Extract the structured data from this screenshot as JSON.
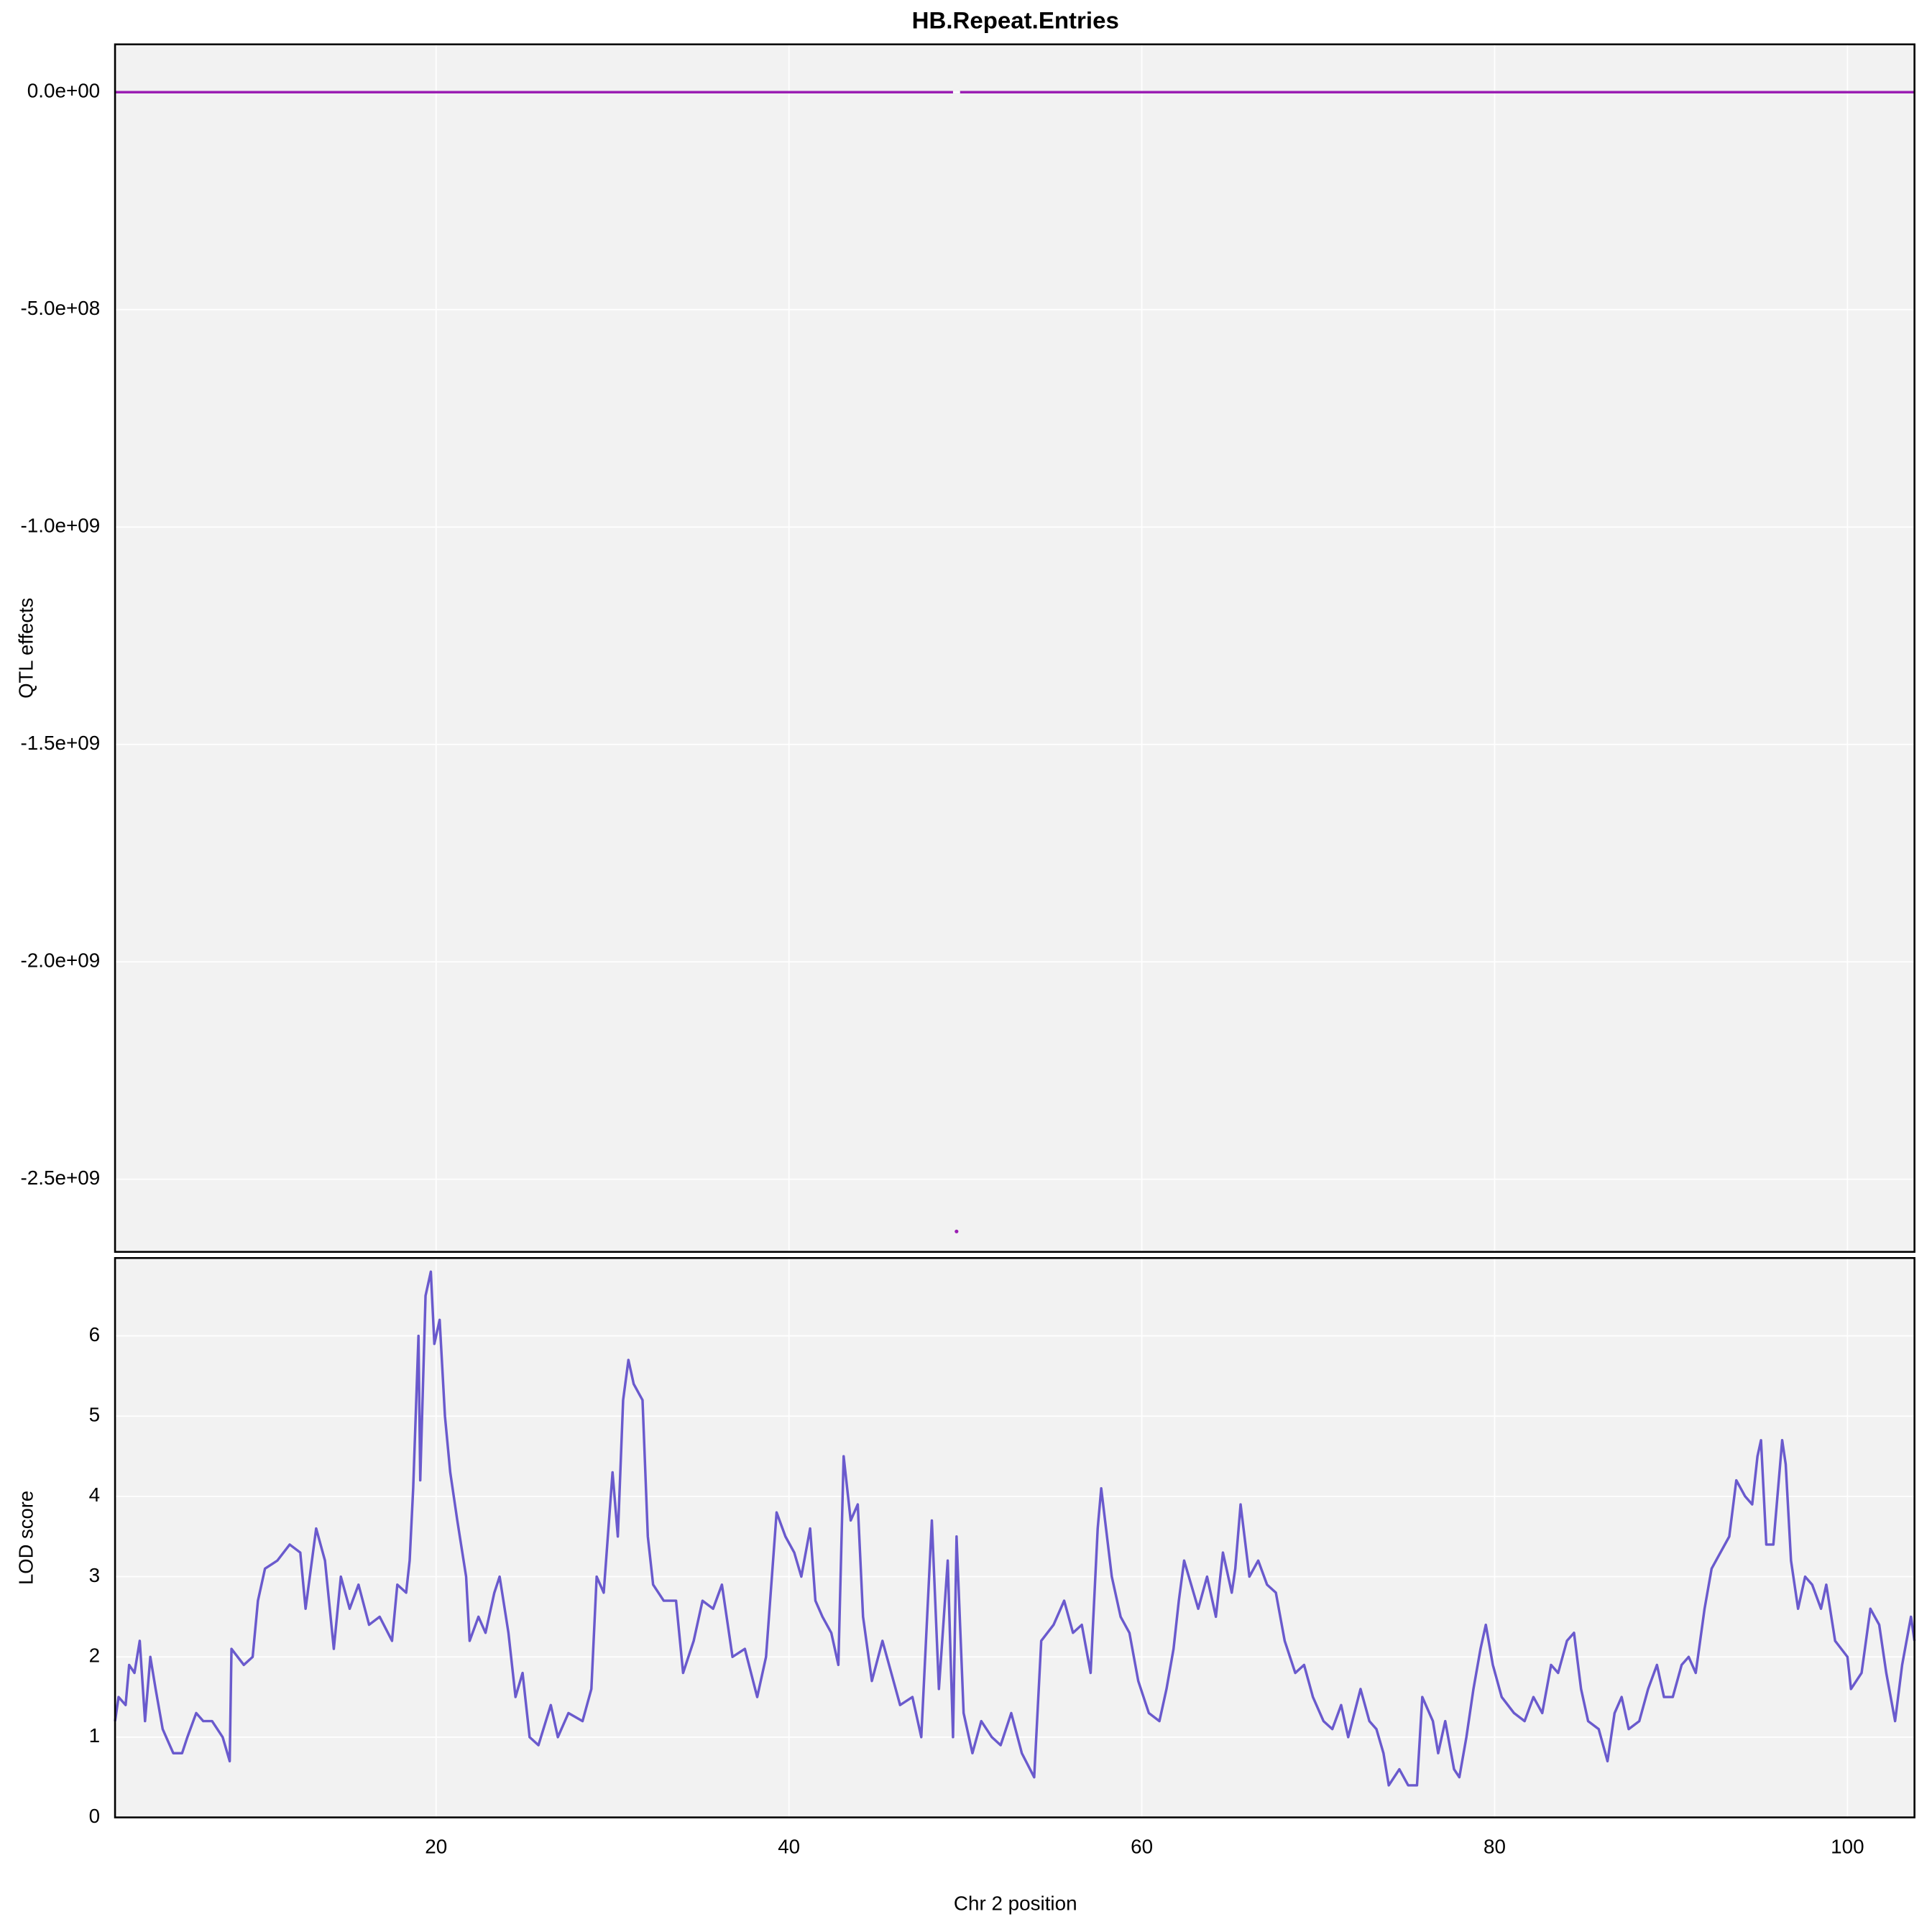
{
  "chart_data": [
    {
      "type": "line",
      "title": "HB.Repeat.Entries",
      "y_label": "QTL effects",
      "x": [
        1.8,
        49.3,
        49.5,
        49.7,
        103.8
      ],
      "series": [
        {
          "color": "#9b1fb3",
          "mode": "line",
          "values": [
            0,
            0,
            null,
            0,
            0
          ]
        },
        {
          "color": "#9b1fb3",
          "mode": "points",
          "values": [
            null,
            null,
            -2620000000,
            null,
            null
          ]
        }
      ],
      "xlim": [
        1.8,
        103.8
      ],
      "xticks": [
        20,
        40,
        60,
        80,
        100
      ],
      "ylim": [
        -2667000000,
        110000000
      ],
      "yticks": [
        {
          "value": 0,
          "label": "0.0e+00"
        },
        {
          "value": -500000000,
          "label": "-5.0e+08"
        },
        {
          "value": -1000000000,
          "label": "-1.0e+09"
        },
        {
          "value": -1500000000,
          "label": "-1.5e+09"
        },
        {
          "value": -2000000000,
          "label": "-2.0e+09"
        },
        {
          "value": -2500000000,
          "label": "-2.5e+09"
        }
      ],
      "grid": true
    },
    {
      "type": "line",
      "y_label": "LOD score",
      "x_label": "Chr 2 position",
      "x": [
        1.8,
        2.0,
        2.4,
        2.6,
        2.9,
        3.2,
        3.5,
        3.8,
        4.1,
        4.5,
        5.1,
        5.6,
        5.9,
        6.4,
        6.8,
        7.3,
        7.9,
        8.3,
        8.4,
        9.1,
        9.6,
        9.9,
        10.3,
        11.0,
        11.7,
        12.3,
        12.6,
        13.2,
        13.7,
        14.2,
        14.6,
        15.1,
        15.6,
        16.2,
        16.8,
        17.5,
        17.8,
        18.3,
        18.5,
        18.7,
        19.0,
        19.1,
        19.4,
        19.7,
        19.9,
        20.2,
        20.5,
        20.8,
        21.2,
        21.7,
        21.9,
        22.4,
        22.8,
        23.3,
        23.6,
        24.1,
        24.5,
        24.9,
        25.3,
        25.8,
        26.5,
        26.9,
        27.5,
        28.3,
        28.8,
        29.1,
        29.5,
        30.0,
        30.3,
        30.6,
        30.9,
        31.2,
        31.7,
        32.0,
        32.3,
        32.9,
        33.6,
        34.0,
        34.6,
        35.1,
        35.7,
        36.2,
        36.8,
        37.5,
        38.2,
        38.7,
        39.0,
        39.3,
        39.8,
        40.3,
        40.7,
        41.2,
        41.5,
        41.9,
        42.4,
        42.8,
        43.1,
        43.5,
        43.9,
        44.2,
        44.7,
        45.3,
        45.8,
        46.3,
        47.0,
        47.5,
        48.1,
        48.5,
        49.0,
        49.3,
        49.5,
        49.9,
        50.4,
        50.9,
        51.5,
        52.0,
        52.6,
        53.2,
        53.9,
        54.3,
        55.0,
        55.6,
        56.1,
        56.6,
        57.1,
        57.5,
        57.7,
        58.3,
        58.8,
        59.3,
        59.8,
        60.4,
        61.0,
        61.4,
        61.8,
        62.1,
        62.4,
        62.8,
        63.2,
        63.7,
        64.2,
        64.6,
        65.1,
        65.3,
        65.6,
        66.1,
        66.6,
        67.1,
        67.6,
        68.1,
        68.7,
        69.2,
        69.7,
        70.3,
        70.8,
        71.3,
        71.7,
        72.4,
        72.9,
        73.3,
        73.7,
        74.0,
        74.6,
        75.1,
        75.6,
        75.9,
        76.5,
        76.8,
        77.2,
        77.7,
        78.0,
        78.4,
        78.8,
        79.2,
        79.5,
        79.9,
        80.4,
        81.1,
        81.7,
        82.2,
        82.7,
        83.2,
        83.6,
        84.1,
        84.5,
        84.9,
        85.3,
        85.9,
        86.4,
        86.8,
        87.2,
        87.6,
        88.2,
        88.7,
        89.2,
        89.6,
        90.1,
        90.6,
        91.0,
        91.4,
        91.9,
        92.3,
        92.8,
        93.3,
        93.7,
        94.2,
        94.6,
        94.9,
        95.1,
        95.4,
        95.8,
        96.3,
        96.5,
        96.8,
        97.2,
        97.6,
        98.0,
        98.5,
        98.8,
        99.3,
        100.0,
        100.2,
        100.8,
        101.3,
        101.8,
        102.2,
        102.7,
        103.1,
        103.6,
        103.8
      ],
      "series": [
        {
          "color": "#6a5acd",
          "mode": "line",
          "values": [
            1.2,
            1.5,
            1.4,
            1.9,
            1.8,
            2.2,
            1.2,
            2.0,
            1.6,
            1.1,
            0.8,
            0.8,
            1.0,
            1.3,
            1.2,
            1.2,
            1.0,
            0.7,
            2.1,
            1.9,
            2.0,
            2.7,
            3.1,
            3.2,
            3.4,
            3.3,
            2.6,
            3.6,
            3.2,
            2.1,
            3.0,
            2.6,
            2.9,
            2.4,
            2.5,
            2.2,
            2.9,
            2.8,
            3.2,
            4.1,
            6.0,
            4.2,
            6.5,
            6.8,
            5.9,
            6.2,
            5.0,
            4.3,
            3.7,
            3.0,
            2.2,
            2.5,
            2.3,
            2.8,
            3.0,
            2.3,
            1.5,
            1.8,
            1.0,
            0.9,
            1.4,
            1.0,
            1.3,
            1.2,
            1.6,
            3.0,
            2.8,
            4.3,
            3.5,
            5.2,
            5.7,
            5.4,
            5.2,
            3.5,
            2.9,
            2.7,
            2.7,
            1.8,
            2.2,
            2.7,
            2.6,
            2.9,
            2.0,
            2.1,
            1.5,
            2.0,
            2.9,
            3.8,
            3.5,
            3.3,
            3.0,
            3.6,
            2.7,
            2.5,
            2.3,
            1.9,
            4.5,
            3.7,
            3.9,
            2.5,
            1.7,
            2.2,
            1.8,
            1.4,
            1.5,
            1.0,
            3.7,
            1.6,
            3.2,
            1.0,
            3.5,
            1.3,
            0.8,
            1.2,
            1.0,
            0.9,
            1.3,
            0.8,
            0.5,
            2.2,
            2.4,
            2.7,
            2.3,
            2.4,
            1.8,
            3.6,
            4.1,
            3.0,
            2.5,
            2.3,
            1.7,
            1.3,
            1.2,
            1.6,
            2.1,
            2.7,
            3.2,
            2.9,
            2.6,
            3.0,
            2.5,
            3.3,
            2.8,
            3.1,
            3.9,
            3.0,
            3.2,
            2.9,
            2.8,
            2.2,
            1.8,
            1.9,
            1.5,
            1.2,
            1.1,
            1.4,
            1.0,
            1.6,
            1.2,
            1.1,
            0.8,
            0.4,
            0.6,
            0.4,
            0.4,
            1.5,
            1.2,
            0.8,
            1.2,
            0.6,
            0.5,
            1.0,
            1.6,
            2.1,
            2.4,
            1.9,
            1.5,
            1.3,
            1.2,
            1.5,
            1.3,
            1.9,
            1.8,
            2.2,
            2.3,
            1.6,
            1.2,
            1.1,
            0.7,
            1.3,
            1.5,
            1.1,
            1.2,
            1.6,
            1.9,
            1.5,
            1.5,
            1.9,
            2.0,
            1.8,
            2.6,
            3.1,
            3.3,
            3.5,
            4.2,
            4.0,
            3.9,
            4.5,
            4.7,
            3.4,
            3.4,
            4.7,
            4.4,
            3.2,
            2.6,
            3.0,
            2.9,
            2.6,
            2.9,
            2.2,
            2.0,
            1.6,
            1.8,
            2.6,
            2.4,
            1.8,
            1.2,
            1.9,
            2.5,
            2.2
          ]
        }
      ],
      "xlim": [
        1.8,
        103.8
      ],
      "xticks": [
        20,
        40,
        60,
        80,
        100
      ],
      "ylim": [
        0,
        6.97
      ],
      "yticks": [
        0,
        1,
        2,
        3,
        4,
        5,
        6
      ],
      "grid": true
    }
  ]
}
